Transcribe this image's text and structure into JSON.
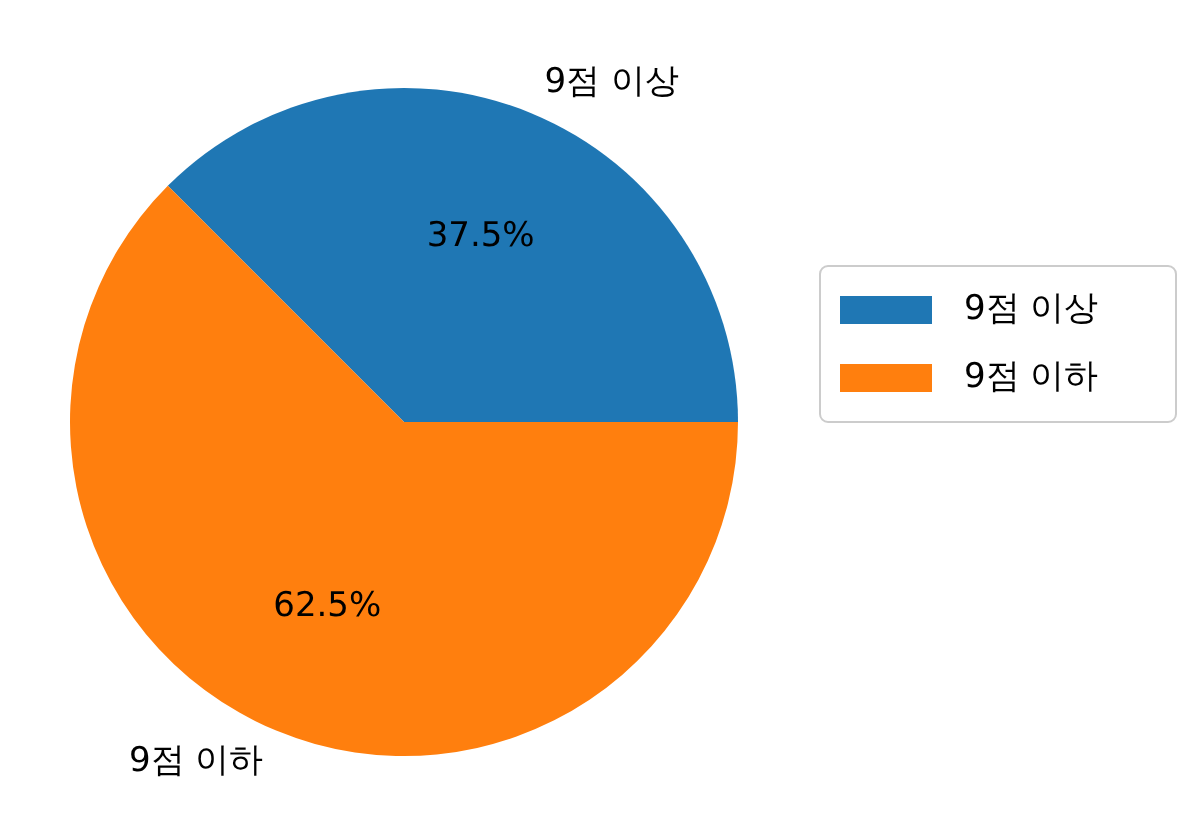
{
  "chart_data": {
    "type": "pie",
    "categories": [
      "9점 이상",
      "9점 이하"
    ],
    "values": [
      37.5,
      62.5
    ],
    "colors": [
      "#1f77b4",
      "#ff7f0e"
    ],
    "value_labels": [
      "37.5%",
      "62.5%"
    ],
    "legend": "right"
  }
}
